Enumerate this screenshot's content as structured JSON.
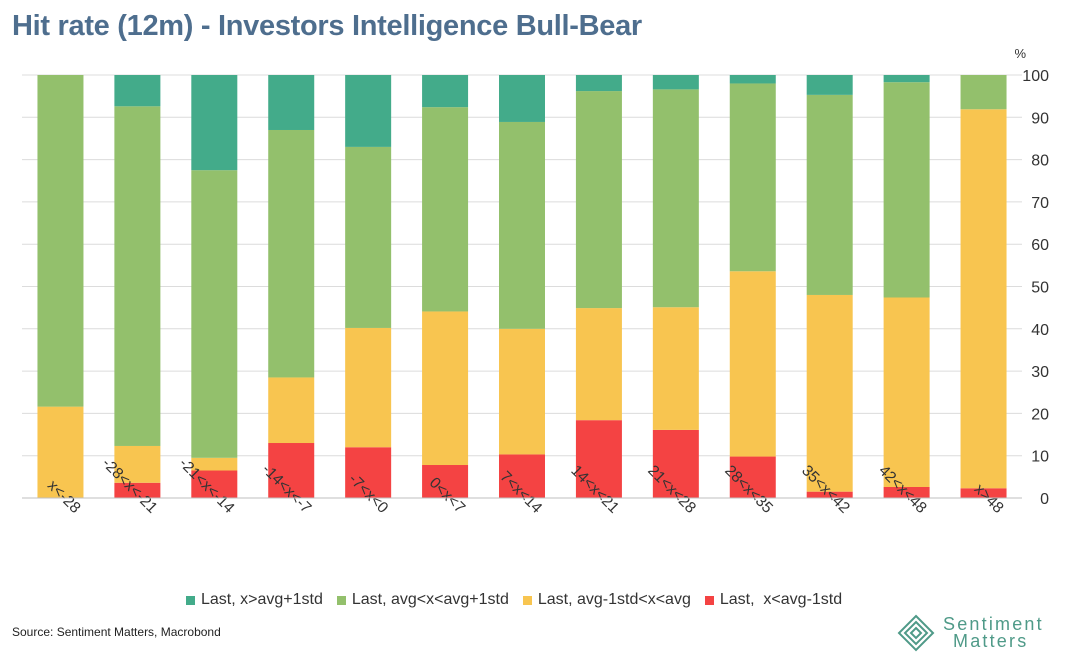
{
  "title": "Hit rate (12m) - Investors Intelligence Bull-Bear",
  "source": "Source: Sentiment Matters, Macrobond",
  "logo": {
    "line1": "Sentiment",
    "line2": "Matters",
    "icon": "diamond-logo-icon"
  },
  "colors": {
    "above_1std": "#43ab8a",
    "avg_to_1std": "#93c06c",
    "minus1std_to_avg": "#f8c550",
    "below_minus1std": "#f44343",
    "grid": "#dcdcdc"
  },
  "chart_data": {
    "type": "bar",
    "stacked": true,
    "title": "Hit rate (12m) - Investors Intelligence Bull-Bear",
    "unit_label": "%",
    "ylim": [
      0,
      100
    ],
    "yticks": [
      0,
      10,
      20,
      30,
      40,
      50,
      60,
      70,
      80,
      90,
      100
    ],
    "y_axis_side": "right",
    "grid": true,
    "legend_position": "bottom",
    "categories": [
      "x<-28",
      "-28<x<-21",
      "-21<x<-14",
      "-14<x<-7",
      "-7<x<0",
      "0<x<7",
      "7<x<14",
      "14<x<21",
      "21<x<28",
      "28<x<35",
      "35<x<42",
      "42<x<48",
      "x>48"
    ],
    "series": [
      {
        "name": "Last,  x<avg-1std",
        "color_key": "below_minus1std",
        "values": [
          0,
          3.6,
          6.5,
          13.0,
          12.0,
          7.8,
          10.3,
          18.4,
          16.1,
          9.8,
          1.5,
          2.6,
          2.3
        ]
      },
      {
        "name": "Last, avg-1std<x<avg",
        "color_key": "minus1std_to_avg",
        "values": [
          21.6,
          8.7,
          3.0,
          15.5,
          28.2,
          36.3,
          29.7,
          26.5,
          29.0,
          43.8,
          46.5,
          44.8,
          89.6
        ]
      },
      {
        "name": "Last, avg<x<avg+1std",
        "color_key": "avg_to_1std",
        "values": [
          78.4,
          80.3,
          68.0,
          58.5,
          42.8,
          48.3,
          48.9,
          51.3,
          51.5,
          44.4,
          47.3,
          50.9,
          8.1
        ]
      },
      {
        "name": "Last, x>avg+1std",
        "color_key": "above_1std",
        "values": [
          0,
          7.4,
          22.5,
          13.0,
          17.0,
          7.6,
          11.1,
          3.8,
          3.4,
          2.0,
          4.7,
          1.7,
          0
        ]
      }
    ],
    "legend_order": [
      "Last, x>avg+1std",
      "Last, avg<x<avg+1std",
      "Last, avg-1std<x<avg",
      "Last,  x<avg-1std"
    ]
  }
}
